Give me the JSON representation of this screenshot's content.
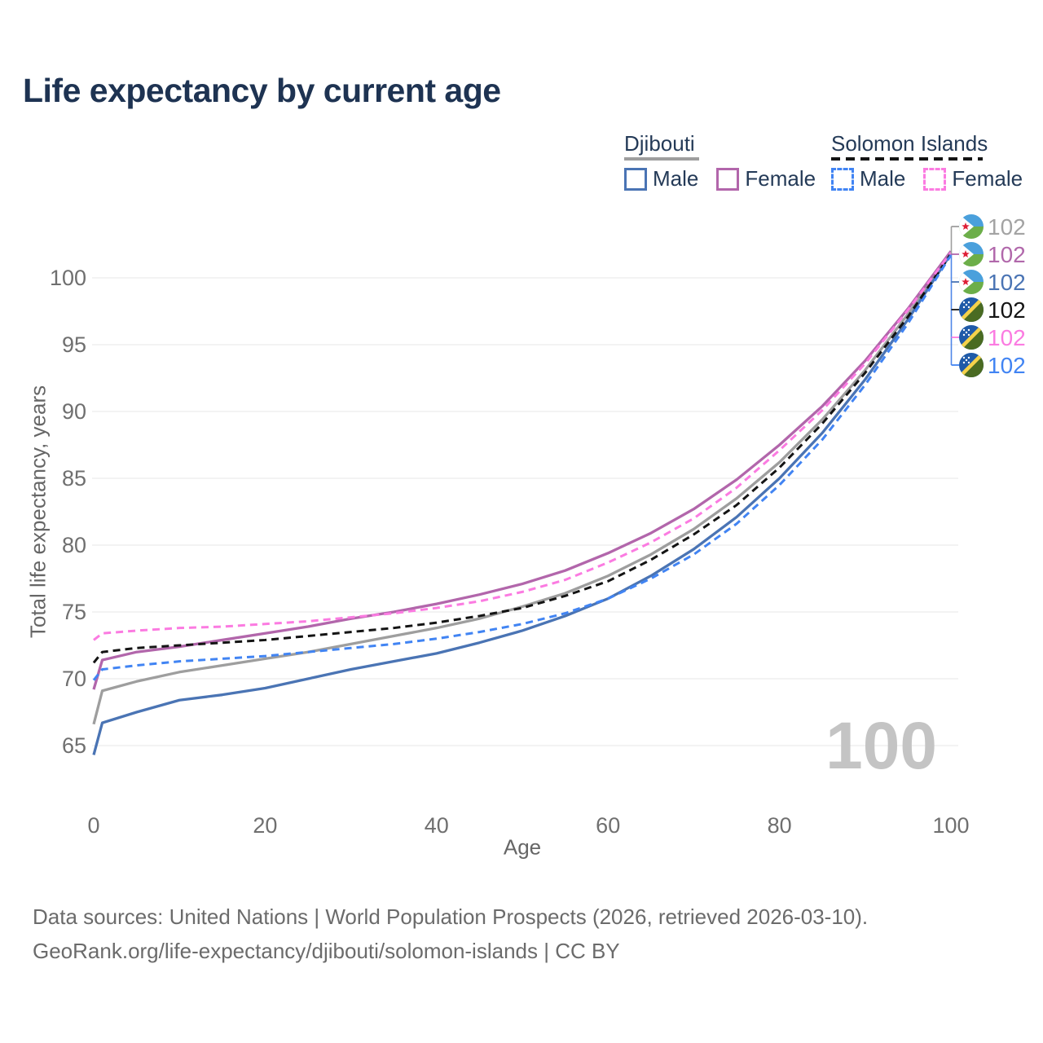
{
  "title": "Life expectancy by current age",
  "legend": {
    "groups": [
      {
        "name": "Djibouti",
        "line_style": "solid",
        "underline_color": "#9e9e9e",
        "items": [
          {
            "label": "Male",
            "color": "#4a74b4",
            "style": "solid"
          },
          {
            "label": "Female",
            "color": "#b266ab",
            "style": "solid"
          }
        ]
      },
      {
        "name": "Solomon Islands",
        "line_style": "dashed",
        "underline_color": "#141414",
        "items": [
          {
            "label": "Male",
            "color": "#4184f3",
            "style": "dashed"
          },
          {
            "label": "Female",
            "color": "#fb7be1",
            "style": "dashed"
          }
        ]
      }
    ]
  },
  "watermark_age": "100",
  "axes": {
    "x_title": "Age",
    "y_title": "Total life expectancy, years"
  },
  "footer": {
    "line1": "Data sources: United Nations | World Population Prospects (2026, retrieved 2026-03-10).",
    "line2": "GeoRank.org/life-expectancy/djibouti/solomon-islands | CC BY"
  },
  "chart_data": {
    "type": "line",
    "title": "Life expectancy by current age",
    "xlabel": "Age",
    "ylabel": "Total life expectancy, years",
    "xlim": [
      0,
      100
    ],
    "ylim": [
      63,
      103
    ],
    "x_ticks": [
      0,
      20,
      40,
      60,
      80,
      100
    ],
    "y_ticks": [
      65,
      70,
      75,
      80,
      85,
      90,
      95,
      100
    ],
    "grid": "horizontal",
    "legend_position": "top-right",
    "x": [
      0,
      1,
      5,
      10,
      15,
      20,
      25,
      30,
      35,
      40,
      45,
      50,
      55,
      60,
      65,
      70,
      75,
      80,
      85,
      90,
      95,
      100
    ],
    "series": [
      {
        "id": "djibouti-total",
        "name": "Djibouti Total",
        "country": "Djibouti",
        "flag": "djibouti",
        "dash": "solid",
        "color": "#9e9e9e",
        "label_color": "#a3a3a3",
        "end_label": "102",
        "values": [
          66.6,
          69.1,
          69.8,
          70.5,
          71.0,
          71.5,
          72.0,
          72.6,
          73.2,
          73.8,
          74.5,
          75.4,
          76.4,
          77.7,
          79.3,
          81.2,
          83.5,
          86.2,
          89.4,
          93.1,
          97.3,
          101.9
        ]
      },
      {
        "id": "djibouti-female",
        "name": "Djibouti Female",
        "country": "Djibouti",
        "flag": "djibouti",
        "dash": "solid",
        "color": "#b266ab",
        "label_color": "#b168ab",
        "end_label": "102",
        "values": [
          69.2,
          71.4,
          72.0,
          72.4,
          72.9,
          73.4,
          73.9,
          74.5,
          75.0,
          75.6,
          76.3,
          77.1,
          78.1,
          79.4,
          80.9,
          82.7,
          84.9,
          87.5,
          90.4,
          93.8,
          97.7,
          102.0
        ]
      },
      {
        "id": "djibouti-male",
        "name": "Djibouti Male",
        "country": "Djibouti",
        "flag": "djibouti",
        "dash": "solid",
        "color": "#4a74b4",
        "label_color": "#4a74b4",
        "end_label": "102",
        "values": [
          64.3,
          66.7,
          67.5,
          68.4,
          68.8,
          69.3,
          70.0,
          70.7,
          71.3,
          71.9,
          72.7,
          73.6,
          74.7,
          76.0,
          77.7,
          79.7,
          82.1,
          85.0,
          88.4,
          92.4,
          96.9,
          101.8
        ]
      },
      {
        "id": "solomon-islands-total",
        "name": "Solomon Islands Total",
        "country": "Solomon Islands",
        "flag": "solomon-islands",
        "dash": "dashed",
        "color": "#141414",
        "label_color": "#141414",
        "end_label": "102",
        "values": [
          71.2,
          72.0,
          72.3,
          72.5,
          72.7,
          72.9,
          73.2,
          73.5,
          73.8,
          74.2,
          74.7,
          75.3,
          76.2,
          77.3,
          78.9,
          80.8,
          83.0,
          85.8,
          89.1,
          92.9,
          97.1,
          101.8
        ]
      },
      {
        "id": "solomon-islands-female",
        "name": "Solomon Islands Female",
        "country": "Solomon Islands",
        "flag": "solomon-islands",
        "dash": "dashed",
        "color": "#fb7be1",
        "label_color": "#fb7be1",
        "end_label": "102",
        "values": [
          72.9,
          73.4,
          73.6,
          73.8,
          73.9,
          74.1,
          74.3,
          74.6,
          74.9,
          75.3,
          75.8,
          76.5,
          77.4,
          78.7,
          80.2,
          82.0,
          84.3,
          87.1,
          90.1,
          93.6,
          97.6,
          101.9
        ]
      },
      {
        "id": "solomon-islands-male",
        "name": "Solomon Islands Male",
        "country": "Solomon Islands",
        "flag": "solomon-islands",
        "dash": "dashed",
        "color": "#4184f3",
        "label_color": "#4184f3",
        "end_label": "102",
        "values": [
          69.9,
          70.7,
          71.0,
          71.3,
          71.5,
          71.7,
          72.0,
          72.3,
          72.6,
          73.0,
          73.5,
          74.1,
          74.9,
          76.0,
          77.5,
          79.3,
          81.6,
          84.5,
          87.9,
          92.0,
          96.6,
          101.7
        ]
      }
    ]
  }
}
